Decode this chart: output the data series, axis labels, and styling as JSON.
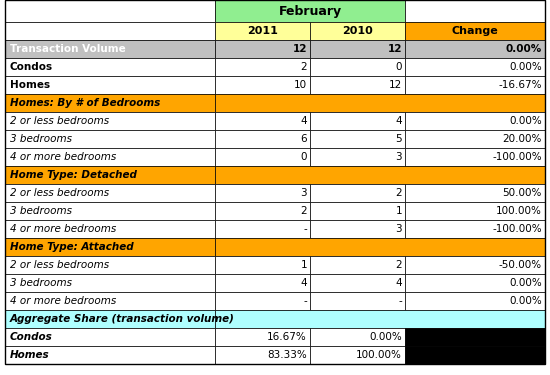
{
  "title": "February",
  "col_headers": [
    "",
    "2011",
    "2010",
    "Change"
  ],
  "rows": [
    {
      "label": "Transaction Volume",
      "v2011": "12",
      "v2010": "12",
      "change": "0.00%",
      "label_style": "bold_white_bg",
      "row_bg": "gray",
      "change_bg": "gray"
    },
    {
      "label": "Condos",
      "v2011": "2",
      "v2010": "0",
      "change": "0.00%",
      "label_style": "bold_white",
      "row_bg": "white",
      "change_bg": "white"
    },
    {
      "label": "Homes",
      "v2011": "10",
      "v2010": "12",
      "change": "-16.67%",
      "label_style": "bold_white",
      "row_bg": "white",
      "change_bg": "white"
    },
    {
      "label": "Homes: By # of Bedrooms",
      "v2011": "",
      "v2010": "",
      "change": "",
      "label_style": "bold_italic_orange",
      "row_bg": "orange",
      "change_bg": "orange",
      "span": true
    },
    {
      "label": "2 or less bedrooms",
      "v2011": "4",
      "v2010": "4",
      "change": "0.00%",
      "label_style": "italic",
      "row_bg": "white",
      "change_bg": "white"
    },
    {
      "label": "3 bedrooms",
      "v2011": "6",
      "v2010": "5",
      "change": "20.00%",
      "label_style": "italic",
      "row_bg": "white",
      "change_bg": "white"
    },
    {
      "label": "4 or more bedrooms",
      "v2011": "0",
      "v2010": "3",
      "change": "-100.00%",
      "label_style": "italic",
      "row_bg": "white",
      "change_bg": "white"
    },
    {
      "label": "Home Type: Detached",
      "v2011": "",
      "v2010": "",
      "change": "",
      "label_style": "bold_italic_orange",
      "row_bg": "orange",
      "change_bg": "orange",
      "span": true
    },
    {
      "label": "2 or less bedrooms",
      "v2011": "3",
      "v2010": "2",
      "change": "50.00%",
      "label_style": "italic",
      "row_bg": "white",
      "change_bg": "white"
    },
    {
      "label": "3 bedrooms",
      "v2011": "2",
      "v2010": "1",
      "change": "100.00%",
      "label_style": "italic",
      "row_bg": "white",
      "change_bg": "white"
    },
    {
      "label": "4 or more bedrooms",
      "v2011": "-",
      "v2010": "3",
      "change": "-100.00%",
      "label_style": "italic",
      "row_bg": "white",
      "change_bg": "white"
    },
    {
      "label": "Home Type: Attached",
      "v2011": "",
      "v2010": "",
      "change": "",
      "label_style": "bold_italic_orange",
      "row_bg": "orange",
      "change_bg": "orange",
      "span": true
    },
    {
      "label": "2 or less bedrooms",
      "v2011": "1",
      "v2010": "2",
      "change": "-50.00%",
      "label_style": "italic",
      "row_bg": "white",
      "change_bg": "white"
    },
    {
      "label": "3 bedrooms",
      "v2011": "4",
      "v2010": "4",
      "change": "0.00%",
      "label_style": "italic",
      "row_bg": "white",
      "change_bg": "white"
    },
    {
      "label": "4 or more bedrooms",
      "v2011": "-",
      "v2010": "-",
      "change": "0.00%",
      "label_style": "italic",
      "row_bg": "white",
      "change_bg": "white"
    },
    {
      "label": "Aggregate Share (transaction volume)",
      "v2011": "",
      "v2010": "",
      "change": "",
      "label_style": "bold_cyan",
      "row_bg": "cyan",
      "change_bg": "cyan",
      "span": true
    },
    {
      "label": "Condos",
      "v2011": "16.67%",
      "v2010": "0.00%",
      "change": "",
      "label_style": "bold_italic",
      "row_bg": "white",
      "change_bg": "black"
    },
    {
      "label": "Homes",
      "v2011": "83.33%",
      "v2010": "100.00%",
      "change": "",
      "label_style": "bold_italic",
      "row_bg": "white",
      "change_bg": "black"
    }
  ],
  "colors": {
    "header_green": "#90EE90",
    "header_yellow": "#FFFF99",
    "header_orange_col": "#FFA500",
    "row_orange": "#FFA500",
    "row_cyan": "#AFFFFF",
    "row_gray": "#C0C0C0",
    "row_white": "#FFFFFF",
    "black": "#000000",
    "text_dark": "#000000",
    "text_white": "#FFFFFF"
  }
}
